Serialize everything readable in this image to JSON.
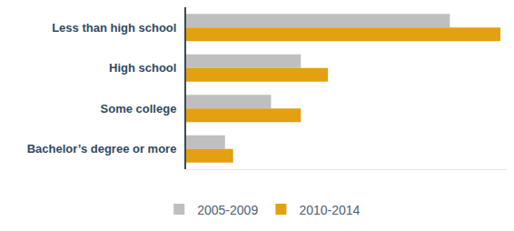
{
  "chart_data": {
    "type": "bar",
    "orientation": "horizontal",
    "categories": [
      "Less than high school",
      "High school",
      "Some college",
      "Bachelor’s degree or more"
    ],
    "series": [
      {
        "name": "2005-2009",
        "color": "#bfbfbf",
        "values": [
          292,
          127,
          94,
          43
        ]
      },
      {
        "name": "2010-2014",
        "color": "#e3a010",
        "values": [
          348,
          157,
          127,
          52
        ]
      }
    ],
    "xlim": [
      0,
      355
    ],
    "grid": false,
    "legend": "bottom",
    "tick_labels": "y"
  }
}
